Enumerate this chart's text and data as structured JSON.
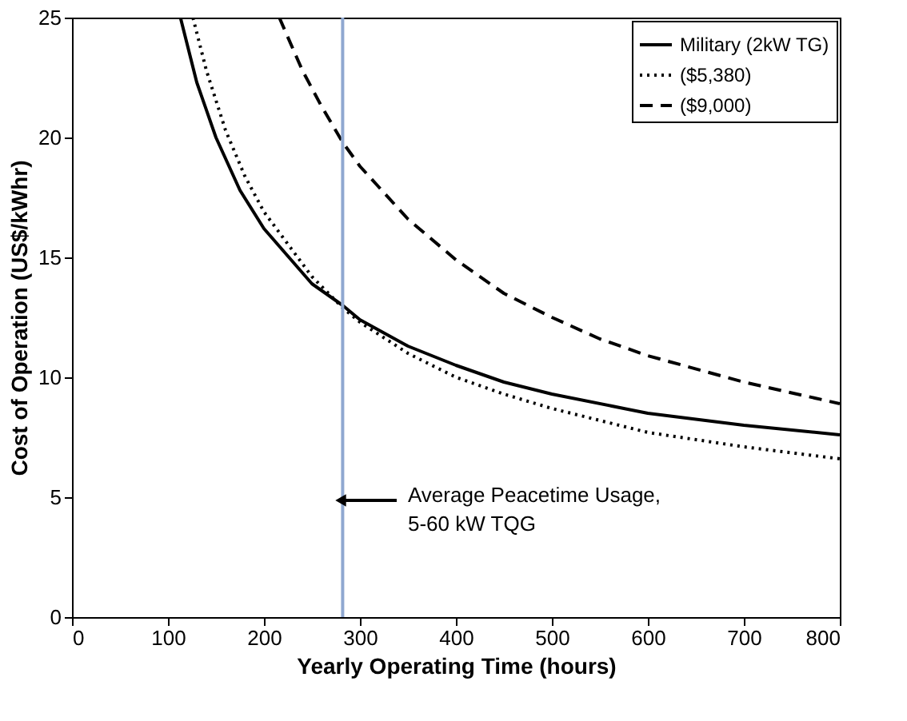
{
  "chart_data": {
    "type": "line",
    "xlabel": "Yearly Operating Time (hours)",
    "ylabel": "Cost of Operation (US$/kWhr)",
    "xlim": [
      0,
      800
    ],
    "xticks": [
      0,
      100,
      200,
      300,
      400,
      500,
      600,
      700,
      800
    ],
    "ylim": [
      0,
      25
    ],
    "yticks": [
      0,
      5,
      10,
      15,
      20,
      25
    ],
    "grid": false,
    "legend": "top right",
    "series": [
      {
        "name": "Military (2kW TG)",
        "color": "#000000",
        "line_style": "solid",
        "x": [
          113,
          130,
          150,
          175,
          200,
          250,
          282,
          300,
          350,
          400,
          450,
          500,
          600,
          700,
          800
        ],
        "values": [
          25,
          22.3,
          20.0,
          17.8,
          16.2,
          13.9,
          13.0,
          12.4,
          11.3,
          10.5,
          9.8,
          9.3,
          8.5,
          8.0,
          7.6
        ]
      },
      {
        "name": "($5,380)",
        "color": "#000000",
        "line_style": "dotted",
        "x": [
          126,
          140,
          160,
          180,
          200,
          250,
          282,
          300,
          350,
          400,
          450,
          500,
          600,
          700,
          800
        ],
        "values": [
          25,
          22.8,
          20.3,
          18.4,
          16.9,
          14.2,
          12.9,
          12.3,
          11.0,
          10.0,
          9.3,
          8.7,
          7.7,
          7.1,
          6.6
        ]
      },
      {
        "name": "($9,000)",
        "color": "#000000",
        "line_style": "dashed",
        "x": [
          216,
          240,
          260,
          282,
          300,
          350,
          400,
          450,
          500,
          550,
          600,
          700,
          800
        ],
        "values": [
          25,
          22.8,
          21.3,
          19.8,
          18.8,
          16.6,
          14.9,
          13.5,
          12.5,
          11.6,
          10.9,
          9.8,
          8.9
        ]
      }
    ],
    "ref_lines": [
      {
        "axis": "x",
        "value": 282,
        "color": "#8fa8d0",
        "line_style": "solid"
      }
    ],
    "annotations": [
      "Average Peacetime Usage,\n5-60 kW TQG"
    ]
  }
}
